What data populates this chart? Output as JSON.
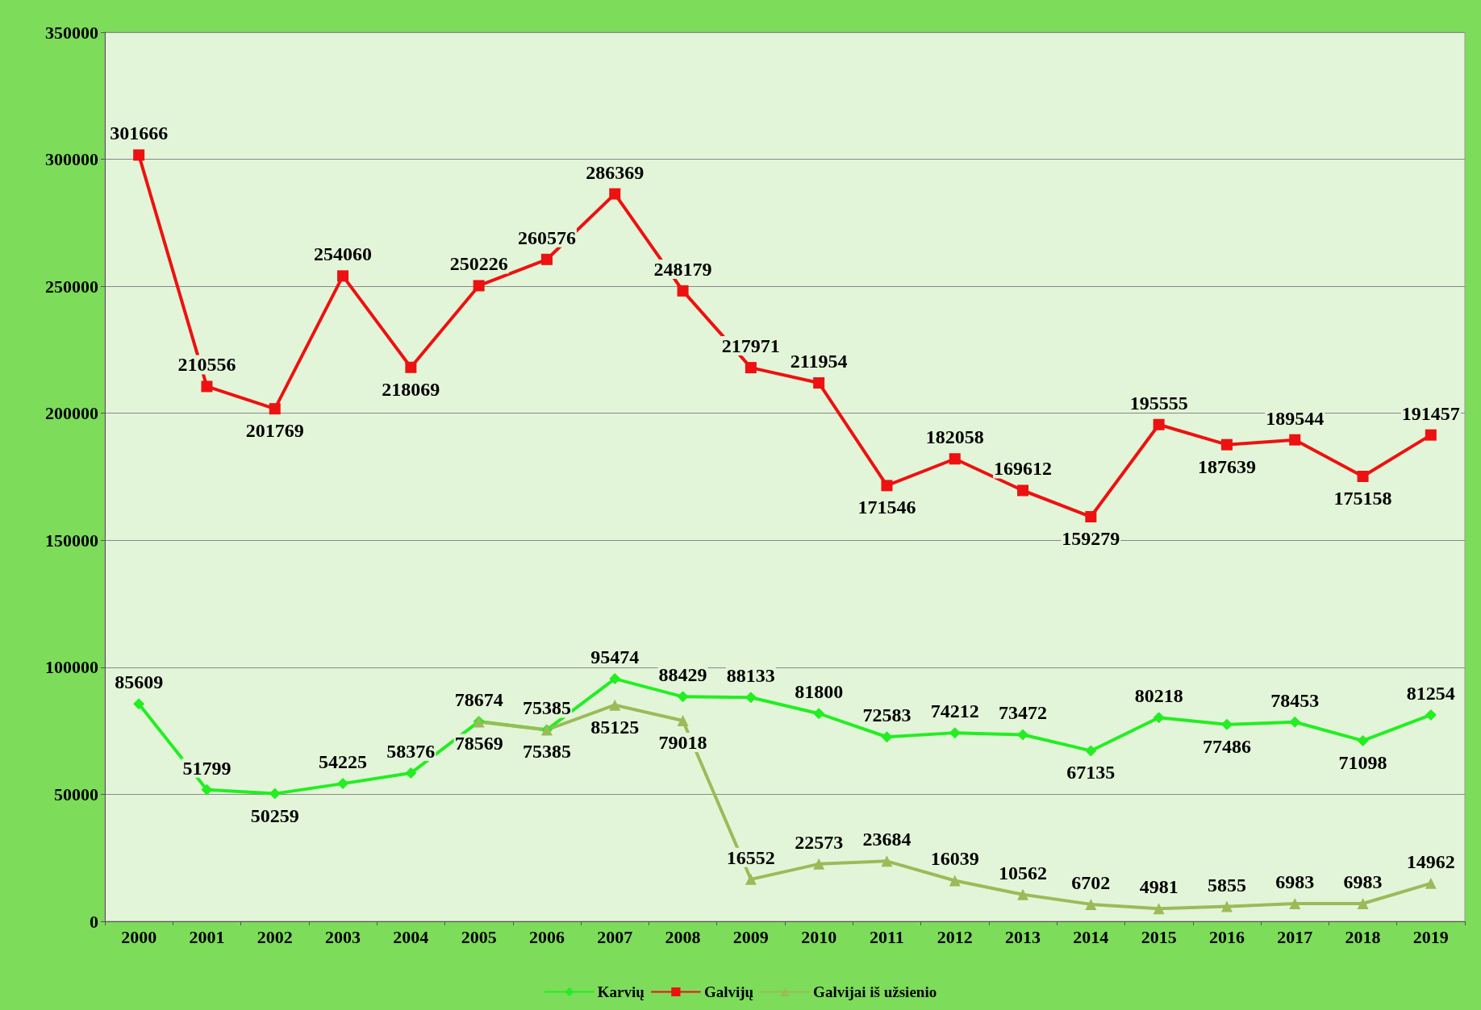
{
  "chart_data": {
    "type": "line",
    "categories": [
      "2000",
      "2001",
      "2002",
      "2003",
      "2004",
      "2005",
      "2006",
      "2007",
      "2008",
      "2009",
      "2010",
      "2011",
      "2012",
      "2013",
      "2014",
      "2015",
      "2016",
      "2017",
      "2018",
      "2019"
    ],
    "series": [
      {
        "name": "Karvių",
        "color": "#22ee22",
        "marker": "diamond",
        "values": [
          85609,
          51799,
          50259,
          54225,
          58376,
          78674,
          75385,
          95474,
          88429,
          88133,
          81800,
          72583,
          74212,
          73472,
          67135,
          80218,
          77486,
          78453,
          71098,
          81254
        ]
      },
      {
        "name": "Galvijų",
        "color": "#ee1111",
        "marker": "square",
        "values": [
          301666,
          210556,
          201769,
          254060,
          218069,
          250226,
          260576,
          286369,
          248179,
          217971,
          211954,
          171546,
          182058,
          169612,
          159279,
          195555,
          187639,
          189544,
          175158,
          191457
        ]
      },
      {
        "name": "Galvijai iš užsienio",
        "color": "#9bbb59",
        "marker": "triangle",
        "values": [
          null,
          null,
          null,
          null,
          null,
          78569,
          75385,
          85125,
          79018,
          16552,
          22573,
          23684,
          16039,
          10562,
          6702,
          4981,
          5855,
          6983,
          6983,
          14962
        ]
      }
    ],
    "ylim": [
      0,
      350000
    ],
    "yticks": [
      0,
      50000,
      100000,
      150000,
      200000,
      250000,
      300000,
      350000
    ],
    "grid": "y",
    "legend": "bottom",
    "data_labels": true,
    "line_style": "solid"
  }
}
